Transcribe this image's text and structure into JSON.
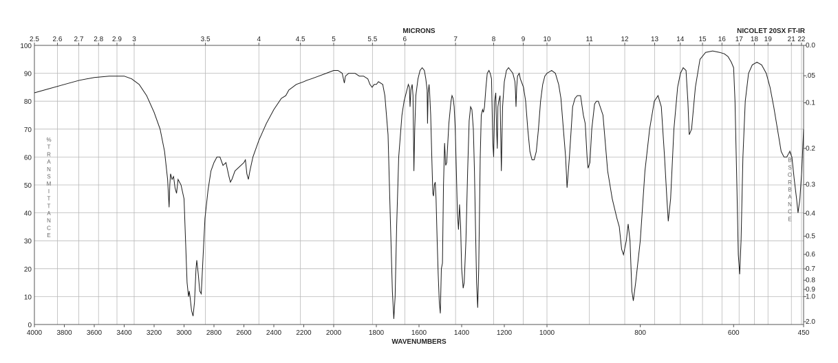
{
  "chart_data": {
    "type": "line",
    "title": "NICOLET 20SX FT-IR",
    "xlabel": "WAVENUMBERS",
    "top_axis_label": "MICRONS",
    "ylabel": "%TRANSMITTANCE",
    "right_label": "ABSORBANCE",
    "x_domain_note": "wavenumber (cm-1); axis decreases left to right; scale changes at 2000 and 1000",
    "xlim": [
      4000,
      450
    ],
    "ylim": [
      0,
      100
    ],
    "x_ticks": [
      4000,
      3800,
      3600,
      3400,
      3200,
      3000,
      2800,
      2600,
      2400,
      2200,
      2000,
      1800,
      1600,
      1400,
      1200,
      1000,
      800,
      600,
      450
    ],
    "y_ticks": [
      0,
      10,
      20,
      30,
      40,
      50,
      60,
      70,
      80,
      90,
      100
    ],
    "micron_ticks": [
      "2.5",
      "2.6",
      "2.7",
      "2.8",
      "2.9",
      "3",
      "3.5",
      "4",
      "4.5",
      "5",
      "5.5",
      "6",
      "7",
      "8",
      "9",
      "10",
      "11",
      "12",
      "13",
      "14",
      "15",
      "16",
      "17",
      "18",
      "19",
      "21",
      "22"
    ],
    "absorbance_ticks": [
      "0.0",
      ".05",
      "0.1",
      "0.2",
      "0.3",
      "0.4",
      "0.5",
      "0.6",
      "0.7",
      "0.8",
      "0.9",
      "1.0",
      "2.0"
    ],
    "series": [
      {
        "points": [
          [
            4000,
            83
          ],
          [
            3900,
            84.5
          ],
          [
            3800,
            86
          ],
          [
            3700,
            87.5
          ],
          [
            3600,
            88.5
          ],
          [
            3500,
            89
          ],
          [
            3400,
            89
          ],
          [
            3350,
            88
          ],
          [
            3300,
            86
          ],
          [
            3250,
            82
          ],
          [
            3200,
            76
          ],
          [
            3160,
            70
          ],
          [
            3130,
            62
          ],
          [
            3110,
            52
          ],
          [
            3100,
            42
          ],
          [
            3095,
            50
          ],
          [
            3090,
            54
          ],
          [
            3080,
            52
          ],
          [
            3070,
            53
          ],
          [
            3060,
            49
          ],
          [
            3050,
            47
          ],
          [
            3040,
            52
          ],
          [
            3020,
            50
          ],
          [
            3000,
            45
          ],
          [
            2990,
            30
          ],
          [
            2980,
            15
          ],
          [
            2970,
            10
          ],
          [
            2965,
            12
          ],
          [
            2960,
            10
          ],
          [
            2950,
            5
          ],
          [
            2940,
            3
          ],
          [
            2930,
            8
          ],
          [
            2920,
            20
          ],
          [
            2915,
            23
          ],
          [
            2905,
            18
          ],
          [
            2895,
            12
          ],
          [
            2885,
            11
          ],
          [
            2875,
            22
          ],
          [
            2860,
            38
          ],
          [
            2840,
            48
          ],
          [
            2820,
            55
          ],
          [
            2800,
            58
          ],
          [
            2780,
            60
          ],
          [
            2760,
            60
          ],
          [
            2740,
            57
          ],
          [
            2720,
            58
          ],
          [
            2700,
            53
          ],
          [
            2690,
            51
          ],
          [
            2680,
            52
          ],
          [
            2660,
            55
          ],
          [
            2640,
            56
          ],
          [
            2620,
            57
          ],
          [
            2600,
            58
          ],
          [
            2590,
            59
          ],
          [
            2580,
            54
          ],
          [
            2570,
            52
          ],
          [
            2560,
            55
          ],
          [
            2540,
            60
          ],
          [
            2500,
            66
          ],
          [
            2450,
            72
          ],
          [
            2400,
            77
          ],
          [
            2350,
            81
          ],
          [
            2320,
            82
          ],
          [
            2300,
            84
          ],
          [
            2250,
            86
          ],
          [
            2200,
            87
          ],
          [
            2180,
            87.5
          ],
          [
            2150,
            88
          ],
          [
            2100,
            89
          ],
          [
            2050,
            90
          ],
          [
            2000,
            91
          ],
          [
            1980,
            91
          ],
          [
            1960,
            90
          ],
          [
            1950,
            86.5
          ],
          [
            1945,
            89
          ],
          [
            1930,
            90
          ],
          [
            1900,
            90
          ],
          [
            1880,
            89
          ],
          [
            1860,
            89
          ],
          [
            1840,
            88
          ],
          [
            1830,
            86
          ],
          [
            1820,
            85
          ],
          [
            1810,
            86
          ],
          [
            1800,
            86
          ],
          [
            1790,
            87
          ],
          [
            1770,
            86
          ],
          [
            1760,
            82
          ],
          [
            1745,
            68
          ],
          [
            1735,
            40
          ],
          [
            1725,
            12
          ],
          [
            1718,
            2
          ],
          [
            1712,
            10
          ],
          [
            1705,
            35
          ],
          [
            1695,
            60
          ],
          [
            1680,
            75
          ],
          [
            1670,
            80
          ],
          [
            1660,
            83
          ],
          [
            1650,
            86
          ],
          [
            1645,
            85
          ],
          [
            1642,
            78
          ],
          [
            1638,
            84
          ],
          [
            1632,
            86
          ],
          [
            1628,
            82
          ],
          [
            1624,
            55
          ],
          [
            1620,
            70
          ],
          [
            1615,
            82
          ],
          [
            1605,
            88
          ],
          [
            1595,
            91
          ],
          [
            1585,
            92
          ],
          [
            1575,
            91
          ],
          [
            1568,
            88
          ],
          [
            1562,
            84
          ],
          [
            1560,
            72
          ],
          [
            1557,
            83
          ],
          [
            1553,
            86
          ],
          [
            1550,
            83
          ],
          [
            1545,
            75
          ],
          [
            1540,
            60
          ],
          [
            1535,
            47
          ],
          [
            1532,
            46
          ],
          [
            1528,
            50
          ],
          [
            1524,
            51
          ],
          [
            1520,
            45
          ],
          [
            1515,
            30
          ],
          [
            1510,
            18
          ],
          [
            1505,
            8
          ],
          [
            1500,
            4
          ],
          [
            1495,
            20
          ],
          [
            1490,
            22
          ],
          [
            1485,
            50
          ],
          [
            1480,
            65
          ],
          [
            1475,
            57
          ],
          [
            1470,
            58
          ],
          [
            1460,
            72
          ],
          [
            1450,
            80
          ],
          [
            1445,
            82
          ],
          [
            1440,
            81
          ],
          [
            1435,
            78
          ],
          [
            1430,
            70
          ],
          [
            1425,
            55
          ],
          [
            1420,
            40
          ],
          [
            1415,
            34
          ],
          [
            1410,
            43
          ],
          [
            1405,
            35
          ],
          [
            1400,
            20
          ],
          [
            1393,
            13
          ],
          [
            1388,
            15
          ],
          [
            1380,
            30
          ],
          [
            1372,
            55
          ],
          [
            1365,
            73
          ],
          [
            1358,
            78
          ],
          [
            1352,
            77
          ],
          [
            1345,
            70
          ],
          [
            1340,
            55
          ],
          [
            1335,
            35
          ],
          [
            1330,
            15
          ],
          [
            1325,
            6
          ],
          [
            1320,
            20
          ],
          [
            1313,
            60
          ],
          [
            1308,
            75
          ],
          [
            1302,
            77
          ],
          [
            1298,
            76
          ],
          [
            1293,
            78
          ],
          [
            1286,
            85
          ],
          [
            1280,
            90
          ],
          [
            1272,
            91
          ],
          [
            1266,
            90
          ],
          [
            1260,
            88
          ],
          [
            1254,
            65
          ],
          [
            1250,
            60
          ],
          [
            1245,
            80
          ],
          [
            1240,
            83
          ],
          [
            1236,
            70
          ],
          [
            1233,
            63
          ],
          [
            1230,
            78
          ],
          [
            1226,
            80
          ],
          [
            1220,
            82
          ],
          [
            1214,
            55
          ],
          [
            1208,
            78
          ],
          [
            1200,
            87
          ],
          [
            1190,
            91
          ],
          [
            1180,
            92
          ],
          [
            1170,
            91
          ],
          [
            1160,
            90
          ],
          [
            1150,
            87
          ],
          [
            1148,
            84
          ],
          [
            1145,
            78
          ],
          [
            1142,
            85
          ],
          [
            1138,
            89
          ],
          [
            1130,
            90
          ],
          [
            1125,
            88
          ],
          [
            1110,
            85
          ],
          [
            1100,
            80
          ],
          [
            1090,
            70
          ],
          [
            1080,
            62
          ],
          [
            1070,
            59
          ],
          [
            1060,
            59
          ],
          [
            1050,
            62
          ],
          [
            1040,
            70
          ],
          [
            1030,
            80
          ],
          [
            1020,
            86
          ],
          [
            1010,
            89
          ],
          [
            1000,
            90
          ],
          [
            990,
            91
          ],
          [
            982,
            90
          ],
          [
            975,
            86
          ],
          [
            970,
            81
          ],
          [
            960,
            60
          ],
          [
            957,
            49
          ],
          [
            952,
            60
          ],
          [
            945,
            78
          ],
          [
            940,
            81
          ],
          [
            935,
            82
          ],
          [
            928,
            82
          ],
          [
            922,
            75
          ],
          [
            918,
            72
          ],
          [
            914,
            60
          ],
          [
            912,
            56
          ],
          [
            908,
            58
          ],
          [
            904,
            70
          ],
          [
            898,
            79
          ],
          [
            894,
            80
          ],
          [
            890,
            80
          ],
          [
            880,
            75
          ],
          [
            870,
            55
          ],
          [
            860,
            45
          ],
          [
            850,
            38
          ],
          [
            845,
            35
          ],
          [
            840,
            27
          ],
          [
            836,
            25
          ],
          [
            830,
            30
          ],
          [
            826,
            36
          ],
          [
            822,
            30
          ],
          [
            818,
            12
          ],
          [
            815,
            8.5
          ],
          [
            810,
            15
          ],
          [
            800,
            30
          ],
          [
            790,
            55
          ],
          [
            780,
            70
          ],
          [
            770,
            80
          ],
          [
            762,
            82
          ],
          [
            755,
            78
          ],
          [
            748,
            60
          ],
          [
            743,
            45
          ],
          [
            740,
            37
          ],
          [
            735,
            45
          ],
          [
            728,
            70
          ],
          [
            720,
            85
          ],
          [
            714,
            90
          ],
          [
            708,
            92
          ],
          [
            702,
            91
          ],
          [
            698,
            80
          ],
          [
            695,
            68
          ],
          [
            690,
            70
          ],
          [
            682,
            85
          ],
          [
            672,
            95
          ],
          [
            660,
            97.5
          ],
          [
            645,
            98
          ],
          [
            630,
            97.5
          ],
          [
            620,
            97
          ],
          [
            612,
            96
          ],
          [
            605,
            94
          ],
          [
            600,
            92
          ],
          [
            597,
            80
          ],
          [
            593,
            50
          ],
          [
            590,
            25
          ],
          [
            587,
            18
          ],
          [
            584,
            30
          ],
          [
            580,
            60
          ],
          [
            575,
            80
          ],
          [
            568,
            90
          ],
          [
            560,
            93
          ],
          [
            550,
            94
          ],
          [
            540,
            93
          ],
          [
            530,
            90
          ],
          [
            522,
            85
          ],
          [
            514,
            78
          ],
          [
            506,
            70
          ],
          [
            498,
            62
          ],
          [
            492,
            60
          ],
          [
            486,
            60
          ],
          [
            480,
            62
          ],
          [
            475,
            60
          ],
          [
            470,
            52
          ],
          [
            465,
            45
          ],
          [
            462,
            40
          ],
          [
            458,
            45
          ],
          [
            454,
            55
          ],
          [
            450,
            70
          ]
        ]
      }
    ]
  }
}
